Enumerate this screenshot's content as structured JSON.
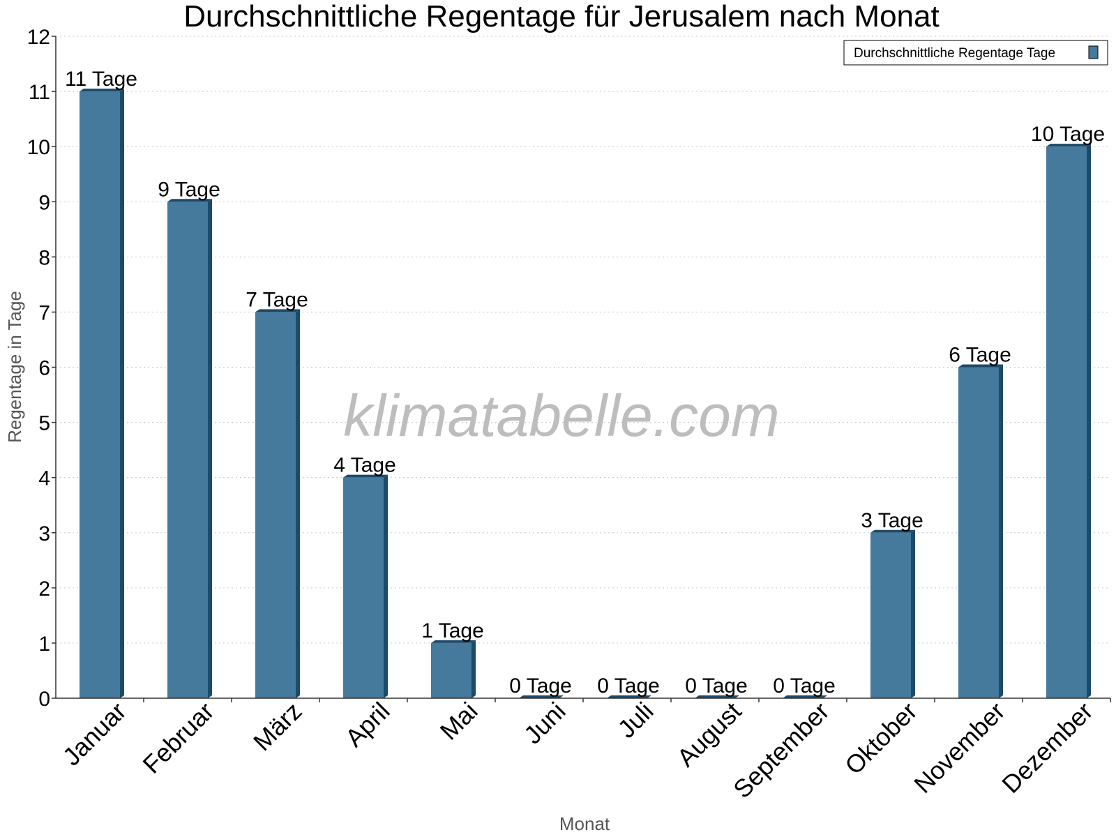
{
  "chart_data": {
    "type": "bar",
    "title": "Durchschnittliche Regentage für Jerusalem nach Monat",
    "xlabel": "Monat",
    "ylabel": "Regentage in Tage",
    "ylim": [
      0,
      12
    ],
    "yticks": [
      "0",
      "1",
      "2",
      "3",
      "4",
      "5",
      "6",
      "7",
      "8",
      "9",
      "10",
      "11",
      "12"
    ],
    "grid": true,
    "legend_position": "top-right",
    "categories": [
      "Januar",
      "Februar",
      "März",
      "April",
      "Mai",
      "Juni",
      "Juli",
      "August",
      "September",
      "Oktober",
      "November",
      "Dezember"
    ],
    "series": [
      {
        "name": "Durchschnittliche Regentage Tage",
        "values": [
          11,
          9,
          7,
          4,
          1,
          0,
          0,
          0,
          0,
          3,
          6,
          10
        ],
        "labels": [
          "11 Tage",
          "9 Tage",
          "7 Tage",
          "4 Tage",
          "1 Tage",
          "0 Tage",
          "0 Tage",
          "0 Tage",
          "0 Tage",
          "3 Tage",
          "6 Tage",
          "10 Tage"
        ],
        "color": "#457a9c",
        "side_color": "#1c4a6a"
      }
    ],
    "watermark": "klimatabelle.com"
  }
}
